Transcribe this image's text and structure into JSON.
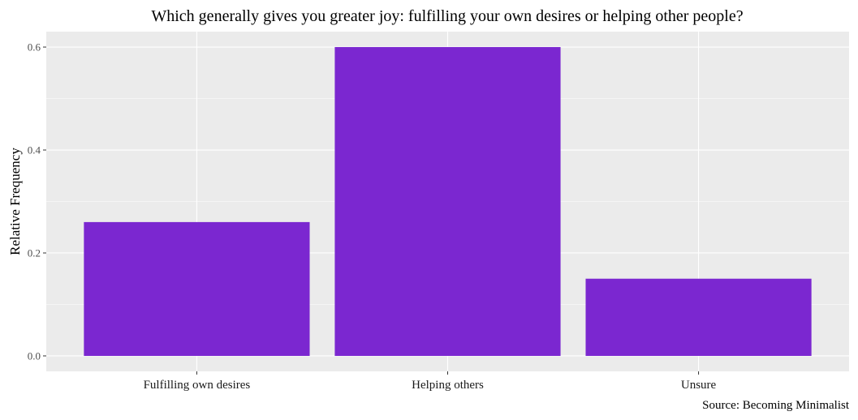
{
  "chart_data": {
    "type": "bar",
    "title": "Which generally gives you greater joy: fulfilling your own desires or helping other people?",
    "xlabel": "",
    "ylabel": "Relative Frequency",
    "categories": [
      "Fulfilling own desires",
      "Helping others",
      "Unsure"
    ],
    "values": [
      0.26,
      0.6,
      0.15
    ],
    "ylim": [
      -0.03,
      0.63
    ],
    "yticks": [
      0.0,
      0.2,
      0.4,
      0.6
    ],
    "ytick_labels": [
      "0.0",
      "0.2",
      "0.4",
      "0.6"
    ],
    "grid": true,
    "legend": "none",
    "caption": "Source: Becoming Minimalist",
    "colors": {
      "bar": "#7b27d0",
      "panel_background": "#ebebeb",
      "gridline": "#ffffff"
    }
  }
}
